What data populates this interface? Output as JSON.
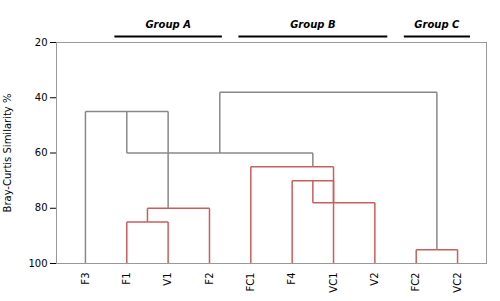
{
  "chart_data": {
    "type": "dendrogram",
    "ylabel": "Bray-Curtis Similarity %",
    "ylim": [
      100,
      20
    ],
    "yticks": [
      20,
      40,
      60,
      80,
      100
    ],
    "xlim": [
      0.3,
      10.7
    ],
    "xticks": [
      {
        "value": 1,
        "label": "F3"
      },
      {
        "value": 2,
        "label": "F1"
      },
      {
        "value": 3,
        "label": "V1"
      },
      {
        "value": 4,
        "label": "F2"
      },
      {
        "value": 5,
        "label": "FC1"
      },
      {
        "value": 6,
        "label": "F4"
      },
      {
        "value": 7,
        "label": "VC1"
      },
      {
        "value": 8,
        "label": "V2"
      },
      {
        "value": 9,
        "label": "FC2"
      },
      {
        "value": 10,
        "label": "VC2"
      }
    ],
    "merges": [
      {
        "x1": 2,
        "x2": 3,
        "y1": 100,
        "y2": 100,
        "y_top": 85,
        "color": "#CD5C5C"
      },
      {
        "x1": 2.5,
        "x2": 4,
        "y1": 85,
        "y2": 100,
        "y_top": 80,
        "color": "#CD5C5C"
      },
      {
        "x1": 6,
        "x2": 7,
        "y1": 100,
        "y2": 100,
        "y_top": 70,
        "color": "#CD5C5C"
      },
      {
        "x1": 6.5,
        "x2": 8,
        "y1": 70,
        "y2": 100,
        "y_top": 78,
        "color": "#CD5C5C"
      },
      {
        "x1": 5,
        "x2": 7,
        "y1": 100,
        "y2": 78,
        "y_top": 65,
        "color": "#CD5C5C"
      },
      {
        "x1": 9,
        "x2": 10,
        "y1": 100,
        "y2": 100,
        "y_top": 95,
        "color": "#CD5C5C"
      },
      {
        "x1": 1,
        "x2": 3,
        "y1": 100,
        "y2": 80,
        "y_top": 45,
        "color": "#888888"
      },
      {
        "x1": 2,
        "x2": 6.5,
        "y1": 45,
        "y2": 65,
        "y_top": 60,
        "color": "#888888"
      },
      {
        "x1": 4.25,
        "x2": 9.5,
        "y1": 60,
        "y2": 95,
        "y_top": 38,
        "color": "#888888"
      }
    ],
    "groups": [
      {
        "label": "Group A",
        "x_start": 1.7,
        "x_end": 4.3
      },
      {
        "label": "Group B",
        "x_start": 4.7,
        "x_end": 8.3
      },
      {
        "label": "Group C",
        "x_start": 8.7,
        "x_end": 10.3
      }
    ]
  }
}
